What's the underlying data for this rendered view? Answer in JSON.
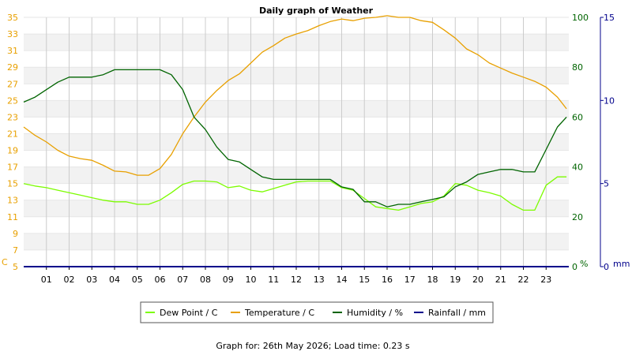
{
  "chart_data": {
    "type": "line",
    "title": "Daily graph of Weather",
    "footer": "Graph for: 26th May 2026; Load time: 0.23 s",
    "x_ticks": [
      "01",
      "02",
      "03",
      "04",
      "05",
      "06",
      "07",
      "08",
      "09",
      "10",
      "11",
      "12",
      "13",
      "14",
      "15",
      "16",
      "17",
      "18",
      "19",
      "20",
      "21",
      "22",
      "23"
    ],
    "x_range": [
      0,
      24
    ],
    "axes": {
      "temp": {
        "unit_label": "C",
        "min": 5,
        "max": 35,
        "ticks": [
          5,
          7,
          9,
          11,
          13,
          15,
          17,
          19,
          21,
          23,
          25,
          27,
          29,
          31,
          33,
          35
        ],
        "color": "#e8a000"
      },
      "humidity": {
        "unit_label": "%",
        "min": 0,
        "max": 100,
        "ticks": [
          0,
          20,
          40,
          60,
          80,
          100
        ],
        "color": "#006400"
      },
      "rain": {
        "unit_label": "mm",
        "min": 0,
        "max": 15,
        "ticks": [
          0,
          5,
          10,
          15
        ],
        "color": "#00008b"
      }
    },
    "series": [
      {
        "name": "Dew Point / C",
        "axis": "temp",
        "color": "#7cfc00",
        "x": [
          0,
          0.5,
          1,
          1.5,
          2,
          2.5,
          3,
          3.5,
          4,
          4.5,
          5,
          5.5,
          6,
          6.5,
          7,
          7.5,
          8,
          8.5,
          9,
          9.5,
          10,
          10.5,
          11,
          11.5,
          12,
          12.5,
          13,
          13.5,
          14,
          14.5,
          15,
          15.5,
          16,
          16.5,
          17,
          17.5,
          18,
          18.5,
          19,
          19.5,
          20,
          20.5,
          21,
          21.5,
          22,
          22.5,
          23,
          23.5,
          23.9
        ],
        "values": [
          15.0,
          14.7,
          14.5,
          14.2,
          13.9,
          13.6,
          13.3,
          13.0,
          12.8,
          12.8,
          12.5,
          12.5,
          13.0,
          13.9,
          14.9,
          15.3,
          15.3,
          15.2,
          14.5,
          14.7,
          14.2,
          14.0,
          14.4,
          14.8,
          15.2,
          15.3,
          15.3,
          15.3,
          14.5,
          14.2,
          13.2,
          12.2,
          12.0,
          11.8,
          12.2,
          12.6,
          12.8,
          13.5,
          15.0,
          14.8,
          14.2,
          13.9,
          13.5,
          12.5,
          11.8,
          11.8,
          14.8,
          15.8,
          15.8
        ]
      },
      {
        "name": "Temperature / C",
        "axis": "temp",
        "color": "#e8a000",
        "x": [
          0,
          0.5,
          1,
          1.5,
          2,
          2.5,
          3,
          3.5,
          4,
          4.5,
          5,
          5.5,
          6,
          6.5,
          7,
          7.5,
          8,
          8.5,
          9,
          9.5,
          10,
          10.5,
          11,
          11.5,
          12,
          12.5,
          13,
          13.5,
          14,
          14.5,
          15,
          15.5,
          16,
          16.5,
          17,
          17.5,
          18,
          18.5,
          19,
          19.5,
          20,
          20.5,
          21,
          21.5,
          22,
          22.5,
          23,
          23.5,
          23.9
        ],
        "values": [
          21.8,
          20.8,
          20.0,
          19.0,
          18.3,
          18.0,
          17.8,
          17.2,
          16.5,
          16.4,
          16.0,
          16.0,
          16.8,
          18.5,
          21.0,
          23.0,
          24.8,
          26.2,
          27.4,
          28.2,
          29.5,
          30.8,
          31.6,
          32.5,
          33.0,
          33.4,
          34.0,
          34.5,
          34.8,
          34.6,
          34.9,
          35.0,
          35.2,
          35.0,
          35.0,
          34.6,
          34.4,
          33.5,
          32.5,
          31.2,
          30.5,
          29.5,
          28.9,
          28.3,
          27.8,
          27.3,
          26.6,
          25.4,
          24.0
        ]
      },
      {
        "name": "Humidity / %",
        "axis": "humidity",
        "color": "#006400",
        "x": [
          0,
          0.5,
          1,
          1.5,
          2,
          2.5,
          3,
          3.5,
          4,
          4.5,
          5,
          5.5,
          6,
          6.5,
          7,
          7.5,
          8,
          8.5,
          9,
          9.5,
          10,
          10.5,
          11,
          11.5,
          12,
          12.5,
          13,
          13.5,
          14,
          14.5,
          15,
          15.5,
          16,
          16.5,
          17,
          17.5,
          18,
          18.5,
          19,
          19.5,
          20,
          20.5,
          21,
          21.5,
          22,
          22.5,
          23,
          23.5,
          23.9
        ],
        "values": [
          66,
          68,
          71,
          74,
          76,
          76,
          76,
          77,
          79,
          79,
          79,
          79,
          79,
          77,
          71,
          60,
          55,
          48,
          43,
          42,
          39,
          36,
          35,
          35,
          35,
          35,
          35,
          35,
          32,
          31,
          26,
          26,
          24,
          25,
          25,
          26,
          27,
          28,
          32,
          34,
          37,
          38,
          39,
          39,
          38,
          38,
          47,
          56,
          60
        ]
      },
      {
        "name": "Rainfall / mm",
        "axis": "rain",
        "color": "#00008b",
        "x": [
          0,
          24
        ],
        "values": [
          0,
          0
        ]
      }
    ],
    "legend_placement": "bottom"
  }
}
